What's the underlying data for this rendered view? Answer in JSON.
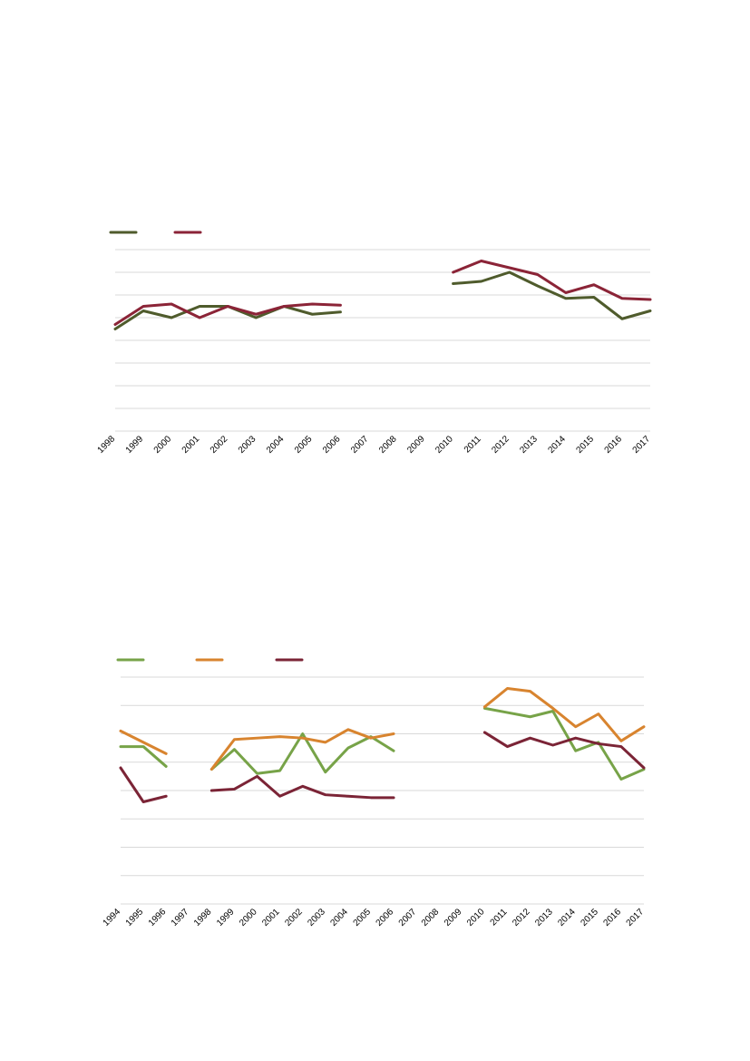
{
  "chart_data": [
    {
      "type": "line",
      "categories": [
        "1998",
        "1999",
        "2000",
        "2001",
        "2002",
        "2003",
        "2004",
        "2005",
        "2006",
        "2007",
        "2008",
        "2009",
        "2010",
        "2011",
        "2012",
        "2013",
        "2014",
        "2015",
        "2016",
        "2017"
      ],
      "ylim": [
        0,
        8
      ],
      "grid": true,
      "legend": "top-left",
      "series": [
        {
          "name": "",
          "color": "#4f5b2c",
          "values": [
            4.5,
            5.3,
            5.0,
            5.5,
            5.5,
            5.0,
            5.5,
            5.15,
            5.25,
            null,
            null,
            null,
            6.5,
            6.6,
            7.0,
            6.4,
            5.85,
            5.9,
            4.95,
            5.3
          ]
        },
        {
          "name": "",
          "color": "#8b2437",
          "values": [
            4.7,
            5.5,
            5.6,
            5.0,
            5.5,
            5.15,
            5.5,
            5.6,
            5.55,
            null,
            null,
            null,
            7.0,
            7.5,
            7.2,
            6.9,
            6.1,
            6.45,
            5.85,
            5.8
          ]
        }
      ]
    },
    {
      "type": "line",
      "categories": [
        "1994",
        "1995",
        "1996",
        "1997",
        "1998",
        "1999",
        "2000",
        "2001",
        "2002",
        "2003",
        "2004",
        "2005",
        "2006",
        "2007",
        "2008",
        "2009",
        "2010",
        "2011",
        "2012",
        "2013",
        "2014",
        "2015",
        "2016",
        "2017"
      ],
      "ylim": [
        0,
        8
      ],
      "grid": true,
      "legend": "top-left",
      "series": [
        {
          "name": "",
          "color": "#77a348",
          "values": [
            5.55,
            5.55,
            4.85,
            null,
            4.75,
            5.45,
            4.6,
            4.7,
            6.0,
            4.65,
            5.5,
            5.9,
            5.4,
            null,
            null,
            null,
            6.9,
            6.75,
            6.6,
            6.8,
            5.4,
            5.7,
            4.4,
            4.75
          ]
        },
        {
          "name": "",
          "color": "#d8842f",
          "values": [
            6.1,
            5.7,
            5.3,
            null,
            4.75,
            5.8,
            5.85,
            5.9,
            5.85,
            5.7,
            6.15,
            5.85,
            6.0,
            null,
            null,
            null,
            6.95,
            7.6,
            7.5,
            6.9,
            6.25,
            6.7,
            5.75,
            6.25
          ]
        },
        {
          "name": "",
          "color": "#7b2436",
          "values": [
            4.8,
            3.6,
            3.8,
            null,
            4.0,
            4.05,
            4.5,
            3.8,
            4.15,
            3.85,
            3.8,
            3.75,
            3.75,
            null,
            null,
            null,
            6.05,
            5.55,
            5.85,
            5.6,
            5.85,
            5.65,
            5.55,
            4.8
          ]
        }
      ]
    }
  ]
}
